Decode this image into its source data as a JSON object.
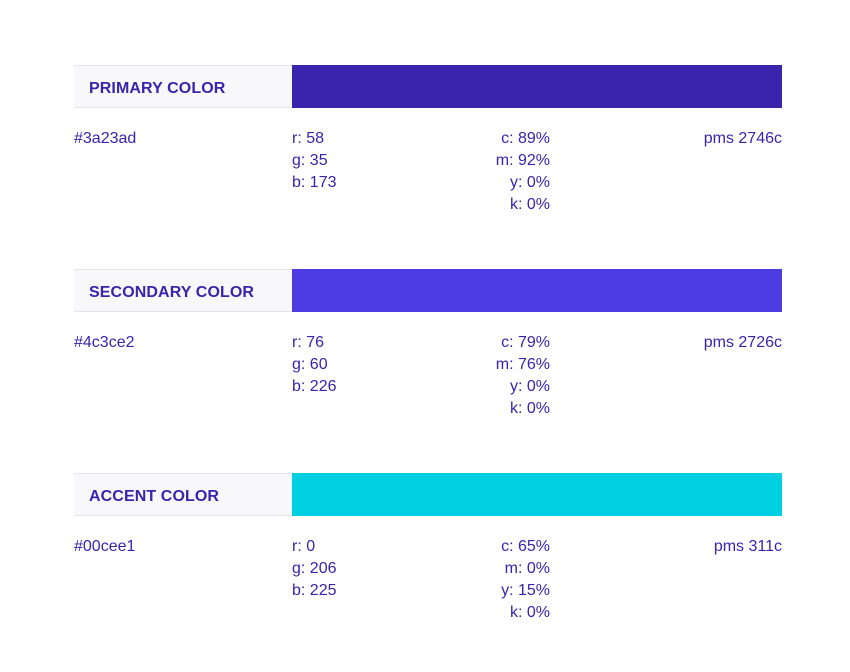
{
  "colors": [
    {
      "label": "PRIMARY COLOR",
      "swatch_color": "#3a23ad",
      "hex": "#3a23ad",
      "rgb": [
        "r: 58",
        "g: 35",
        "b: 173"
      ],
      "cmyk": [
        "c: 89%",
        "m: 92%",
        "y: 0%",
        "k: 0%"
      ],
      "pms": "pms 2746c"
    },
    {
      "label": "SECONDARY COLOR",
      "swatch_color": "#4c3ce2",
      "hex": "#4c3ce2",
      "rgb": [
        "r: 76",
        "g: 60",
        "b: 226"
      ],
      "cmyk": [
        "c: 79%",
        "m: 76%",
        "y: 0%",
        "k: 0%"
      ],
      "pms": "pms 2726c"
    },
    {
      "label": "ACCENT COLOR",
      "swatch_color": "#00cee1",
      "hex": "#00cee1",
      "rgb": [
        "r: 0",
        "g: 206",
        "b: 225"
      ],
      "cmyk": [
        "c: 65%",
        "m: 0%",
        "y: 15%",
        "k: 0%"
      ],
      "pms": "pms 311c"
    }
  ]
}
